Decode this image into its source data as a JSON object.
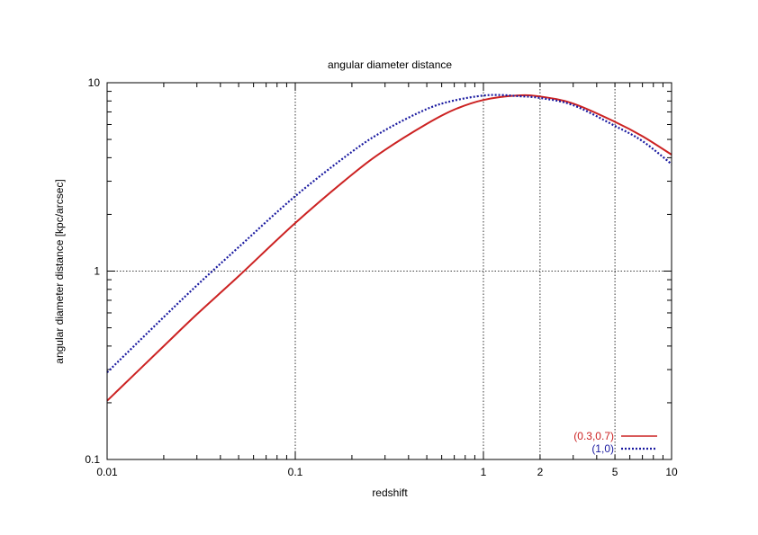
{
  "chart_data": {
    "type": "line",
    "title": "angular diameter distance",
    "xlabel": "redshift",
    "ylabel": "angular diameter distance [kpc/arcsec]",
    "x_scale": "log",
    "y_scale": "log",
    "xlim": [
      0.01,
      10
    ],
    "ylim": [
      0.1,
      10
    ],
    "x_ticks": [
      {
        "value": 0.01,
        "label": "0.01"
      },
      {
        "value": 0.1,
        "label": "0.1"
      },
      {
        "value": 1,
        "label": "1"
      },
      {
        "value": 2,
        "label": "2"
      },
      {
        "value": 5,
        "label": "5"
      },
      {
        "value": 10,
        "label": "10"
      }
    ],
    "y_ticks": [
      {
        "value": 0.1,
        "label": "0.1"
      },
      {
        "value": 1,
        "label": "1"
      },
      {
        "value": 10,
        "label": "10"
      }
    ],
    "grid": true,
    "grid_x": [
      0.1,
      1,
      2,
      5
    ],
    "grid_y": [
      1
    ],
    "legend_position": "bottom-right",
    "series": [
      {
        "name": "(0.3,0.7)",
        "color": "#cc2222",
        "dash": "solid",
        "x": [
          0.01,
          0.02,
          0.03,
          0.05,
          0.1,
          0.2,
          0.3,
          0.5,
          0.7,
          1,
          1.5,
          2,
          3,
          5,
          7,
          10
        ],
        "y": [
          0.205,
          0.4,
          0.59,
          0.94,
          1.8,
          3.25,
          4.4,
          6.05,
          7.2,
          8.1,
          8.55,
          8.45,
          7.75,
          6.2,
          5.2,
          4.15
        ]
      },
      {
        "name": "(1,0)",
        "color": "#1a1aa0",
        "dash": "dotted",
        "x": [
          0.01,
          0.02,
          0.03,
          0.05,
          0.1,
          0.2,
          0.3,
          0.5,
          0.7,
          1,
          1.25,
          1.5,
          2,
          3,
          5,
          7,
          10
        ],
        "y": [
          0.29,
          0.57,
          0.84,
          1.34,
          2.5,
          4.3,
          5.6,
          7.25,
          8.05,
          8.55,
          8.6,
          8.5,
          8.3,
          7.6,
          5.9,
          4.9,
          3.7
        ]
      }
    ]
  }
}
